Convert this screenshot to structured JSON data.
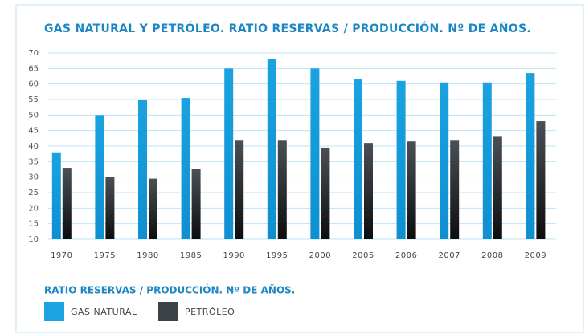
{
  "chart_data": {
    "type": "bar",
    "title": "GAS NATURAL Y PETRÓLEO. RATIO RESERVAS / PRODUCCIÓN. Nº DE AÑOS.",
    "legend_title": "RATIO RESERVAS / PRODUCCIÓN. Nº DE AÑOS.",
    "categories": [
      "1970",
      "1975",
      "1980",
      "1985",
      "1990",
      "1995",
      "2000",
      "2005",
      "2006",
      "2007",
      "2008",
      "2009"
    ],
    "series": [
      {
        "name": "GAS NATURAL",
        "color": "#1aa3e0",
        "values": [
          38,
          50,
          55,
          55.5,
          65,
          68,
          65,
          61.5,
          61,
          60.5,
          60.5,
          63.5
        ]
      },
      {
        "name": "PETRÓLEO",
        "color": "#3c4248",
        "values": [
          33,
          30,
          29.5,
          32.5,
          42,
          42,
          39.5,
          41,
          41.5,
          42,
          43,
          48
        ]
      }
    ],
    "ylim": [
      10,
      70
    ],
    "yticks": [
      10,
      15,
      20,
      25,
      30,
      35,
      40,
      45,
      50,
      55,
      60,
      65,
      70
    ],
    "grid": true
  }
}
